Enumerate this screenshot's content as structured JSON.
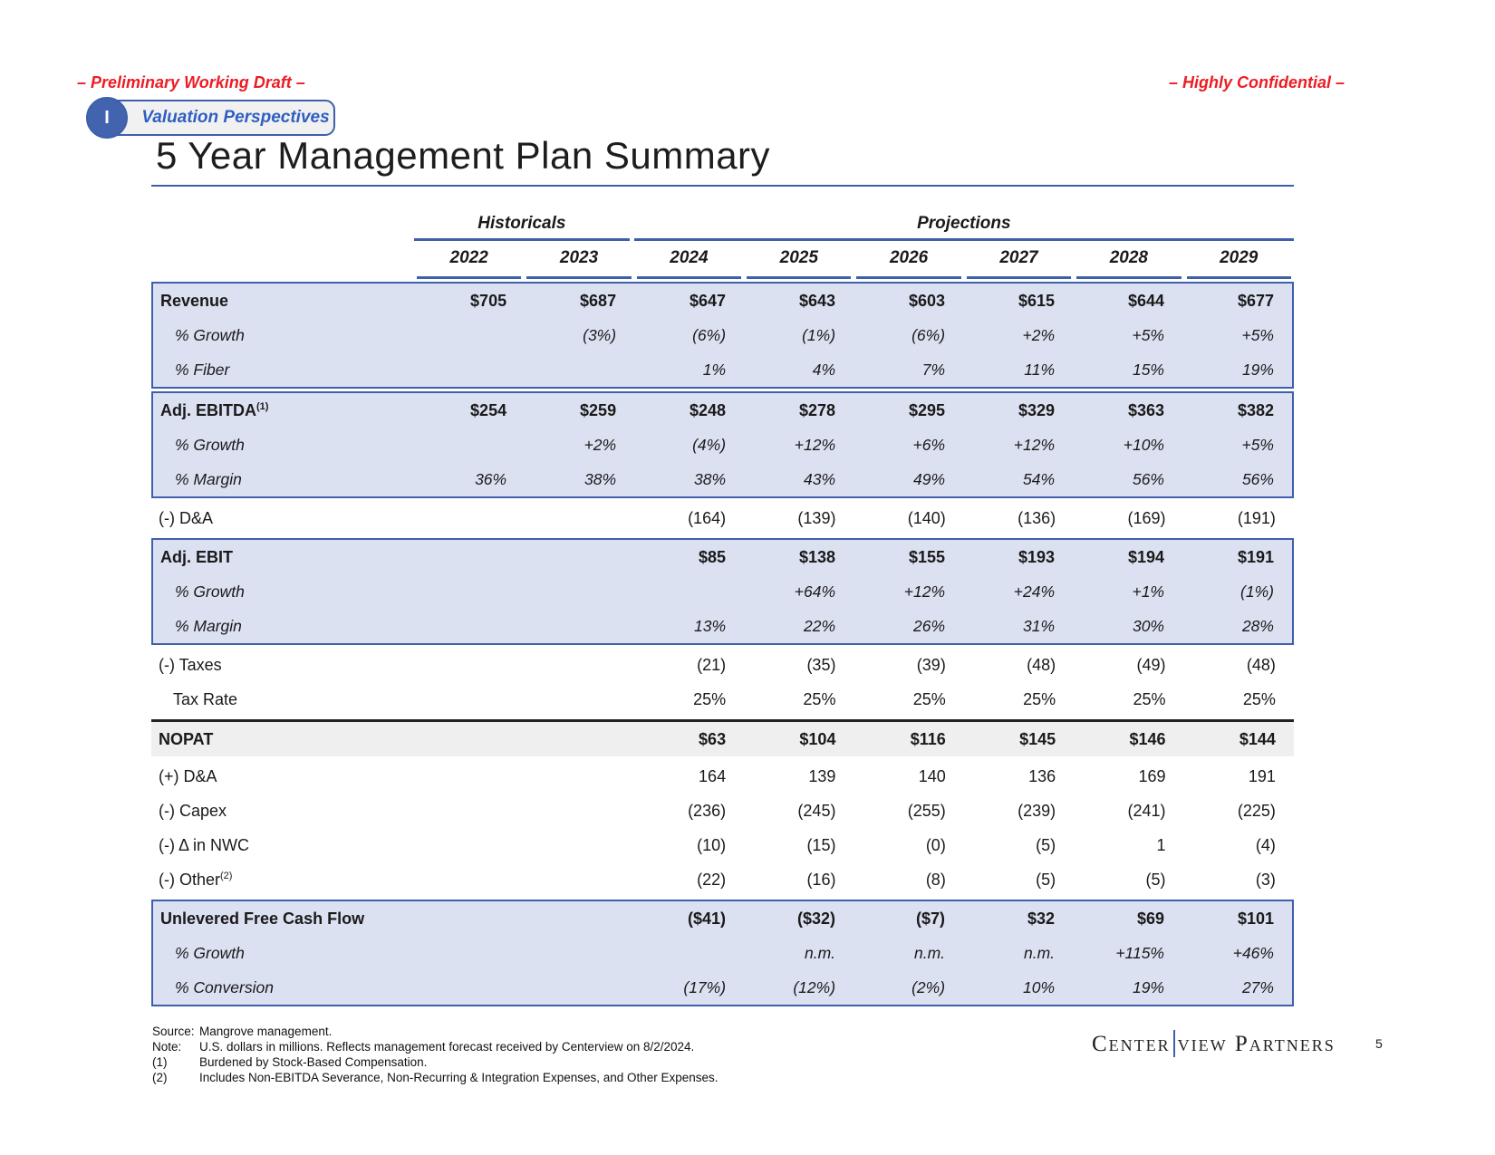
{
  "header": {
    "draft_marker": "– Preliminary Working Draft –",
    "confidential_marker": "– Highly Confidential –",
    "section_number": "I",
    "section_label": "Valuation Perspectives",
    "title": "5 Year Management Plan Summary"
  },
  "colors": {
    "accent_blue": "#3e5fac",
    "badge_text_blue": "#2f5fc1",
    "marker_red": "#ed1c24",
    "block_fill": "#dce1f2",
    "nopat_fill": "#efefef"
  },
  "table": {
    "groups": [
      {
        "label": "Historicals",
        "cols": 2
      },
      {
        "label": "Projections",
        "cols": 6
      }
    ],
    "years": [
      "2022",
      "2023",
      "2024",
      "2025",
      "2026",
      "2027",
      "2028",
      "2029"
    ],
    "blocks": [
      {
        "style": "highlight",
        "rows": [
          {
            "label": "Revenue",
            "sup": "",
            "cls": "bold",
            "values": [
              "$705",
              "$687",
              "$647",
              "$643",
              "$603",
              "$615",
              "$644",
              "$677"
            ]
          },
          {
            "label": "% Growth",
            "sup": "",
            "cls": "italic",
            "values": [
              "",
              "(3%)",
              "(6%)",
              "(1%)",
              "(6%)",
              "+2%",
              "+5%",
              "+5%"
            ]
          },
          {
            "label": "% Fiber",
            "sup": "",
            "cls": "italic",
            "values": [
              "",
              "",
              "1%",
              "4%",
              "7%",
              "11%",
              "15%",
              "19%"
            ]
          }
        ]
      },
      {
        "style": "highlight",
        "rows": [
          {
            "label": "Adj. EBITDA",
            "sup": "(1)",
            "cls": "bold",
            "values": [
              "$254",
              "$259",
              "$248",
              "$278",
              "$295",
              "$329",
              "$363",
              "$382"
            ]
          },
          {
            "label": "% Growth",
            "sup": "",
            "cls": "italic",
            "values": [
              "",
              "+2%",
              "(4%)",
              "+12%",
              "+6%",
              "+12%",
              "+10%",
              "+5%"
            ]
          },
          {
            "label": "% Margin",
            "sup": "",
            "cls": "italic",
            "values": [
              "36%",
              "38%",
              "38%",
              "43%",
              "49%",
              "54%",
              "56%",
              "56%"
            ]
          }
        ]
      },
      {
        "style": "plain",
        "rows": [
          {
            "label": "(-) D&A",
            "sup": "",
            "cls": "plain",
            "values": [
              "",
              "",
              "(164)",
              "(139)",
              "(140)",
              "(136)",
              "(169)",
              "(191)"
            ]
          }
        ]
      },
      {
        "style": "highlight",
        "rows": [
          {
            "label": "Adj. EBIT",
            "sup": "",
            "cls": "bold",
            "values": [
              "",
              "",
              "$85",
              "$138",
              "$155",
              "$193",
              "$194",
              "$191"
            ]
          },
          {
            "label": "% Growth",
            "sup": "",
            "cls": "italic",
            "values": [
              "",
              "",
              "",
              "+64%",
              "+12%",
              "+24%",
              "+1%",
              "(1%)"
            ]
          },
          {
            "label": "% Margin",
            "sup": "",
            "cls": "italic",
            "values": [
              "",
              "",
              "13%",
              "22%",
              "26%",
              "31%",
              "30%",
              "28%"
            ]
          }
        ]
      },
      {
        "style": "plain",
        "rows": [
          {
            "label": "(-) Taxes",
            "sup": "",
            "cls": "plain",
            "values": [
              "",
              "",
              "(21)",
              "(35)",
              "(39)",
              "(48)",
              "(49)",
              "(48)"
            ]
          },
          {
            "label": "Tax Rate",
            "sup": "",
            "cls": "plain indent",
            "values": [
              "",
              "",
              "25%",
              "25%",
              "25%",
              "25%",
              "25%",
              "25%"
            ]
          }
        ]
      },
      {
        "style": "nopat",
        "rows": [
          {
            "label": "NOPAT",
            "sup": "",
            "cls": "bold",
            "values": [
              "",
              "",
              "$63",
              "$104",
              "$116",
              "$145",
              "$146",
              "$144"
            ]
          }
        ]
      },
      {
        "style": "plain",
        "rows": [
          {
            "label": "(+) D&A",
            "sup": "",
            "cls": "plain",
            "values": [
              "",
              "",
              "164",
              "139",
              "140",
              "136",
              "169",
              "191"
            ]
          },
          {
            "label": "(-) Capex",
            "sup": "",
            "cls": "plain",
            "values": [
              "",
              "",
              "(236)",
              "(245)",
              "(255)",
              "(239)",
              "(241)",
              "(225)"
            ]
          },
          {
            "label": "(-) Δ in NWC",
            "sup": "",
            "cls": "plain",
            "values": [
              "",
              "",
              "(10)",
              "(15)",
              "(0)",
              "(5)",
              "1",
              "(4)"
            ]
          },
          {
            "label": "(-) Other",
            "sup": "(2)",
            "cls": "plain",
            "values": [
              "",
              "",
              "(22)",
              "(16)",
              "(8)",
              "(5)",
              "(5)",
              "(3)"
            ]
          }
        ]
      },
      {
        "style": "highlight",
        "rows": [
          {
            "label": "Unlevered Free Cash Flow",
            "sup": "",
            "cls": "bold",
            "values": [
              "",
              "",
              "($41)",
              "($32)",
              "($7)",
              "$32",
              "$69",
              "$101"
            ]
          },
          {
            "label": "% Growth",
            "sup": "",
            "cls": "italic",
            "values": [
              "",
              "",
              "",
              "n.m.",
              "n.m.",
              "n.m.",
              "+115%",
              "+46%"
            ]
          },
          {
            "label": "% Conversion",
            "sup": "",
            "cls": "italic",
            "values": [
              "",
              "",
              "(17%)",
              "(12%)",
              "(2%)",
              "10%",
              "19%",
              "27%"
            ]
          }
        ]
      }
    ]
  },
  "footnotes": [
    {
      "label": "Source:",
      "text": "Mangrove management."
    },
    {
      "label": "Note:",
      "text": "U.S. dollars in millions. Reflects management forecast received by Centerview on 8/2/2024."
    },
    {
      "label": "(1)",
      "text": "Burdened by Stock-Based Compensation."
    },
    {
      "label": "(2)",
      "text": "Includes Non-EBITDA Severance, Non-Recurring & Integration Expenses, and Other Expenses."
    }
  ],
  "footer": {
    "logo_part1": "Center",
    "logo_part2": "view Partners",
    "page_number": "5"
  }
}
